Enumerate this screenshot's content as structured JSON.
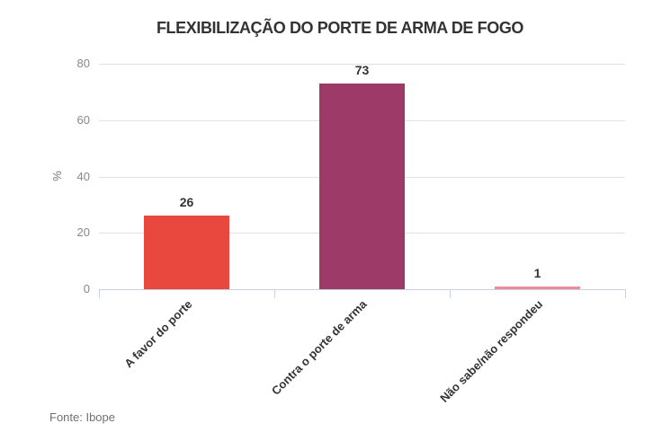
{
  "chart_data": {
    "type": "bar",
    "title": "FLEXIBILIZAÇÃO DO PORTE DE ARMA DE FOGO",
    "categories": [
      "A favor do porte",
      "Contra o porte de arma",
      "Não sabe/não respondeu"
    ],
    "values": [
      26,
      73,
      1
    ],
    "bar_colors": [
      "#e8483d",
      "#9d3a67",
      "#ef8a9b"
    ],
    "ylabel": "%",
    "ylim": [
      0,
      80
    ],
    "yticks": [
      0,
      20,
      40,
      60,
      80
    ],
    "grid": true,
    "legend": "none",
    "xlabel": "",
    "value_labels_shown": true
  },
  "source": {
    "label": "Fonte: Ibope"
  },
  "colors": {
    "background": "#ffffff",
    "title_text": "#333333",
    "gridline": "#e2e2e2",
    "axis_line": "#c8d1e3",
    "ytick_text": "#888888",
    "category_text": "#333333",
    "value_text": "#333333",
    "source_text": "#707070"
  }
}
